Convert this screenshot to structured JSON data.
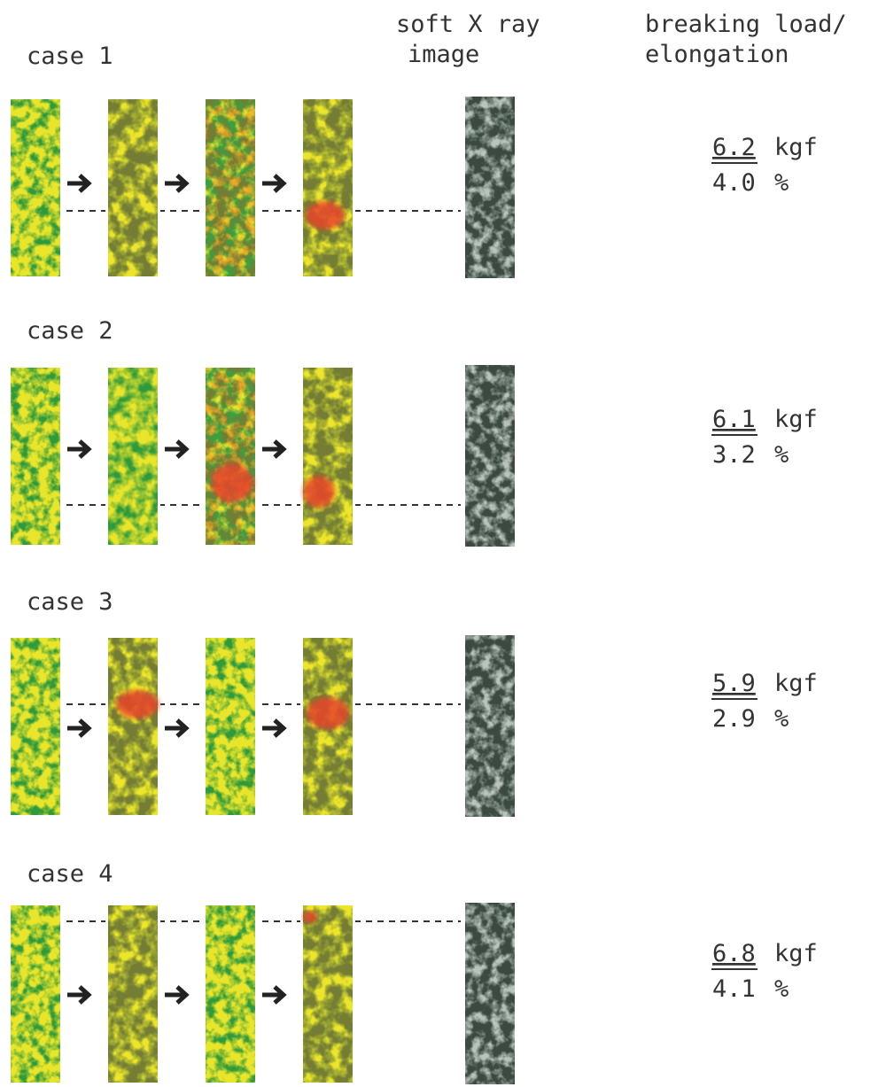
{
  "header": {
    "xray_title": [
      "soft X ray",
      "image"
    ],
    "result_title": [
      "breaking load/",
      "elongation"
    ]
  },
  "cases": [
    {
      "label": "case 1",
      "load": "6.2",
      "load_unit": "kgf",
      "elongation": "4.0",
      "elongation_unit": "%"
    },
    {
      "label": "case 2",
      "load": "6.1",
      "load_unit": "kgf",
      "elongation": "3.2",
      "elongation_unit": "%"
    },
    {
      "label": "case 3",
      "load": "5.9",
      "load_unit": "kgf",
      "elongation": "2.9",
      "elongation_unit": "%"
    },
    {
      "label": "case 4",
      "load": "6.8",
      "load_unit": "kgf",
      "elongation": "4.1",
      "elongation_unit": "%"
    }
  ]
}
